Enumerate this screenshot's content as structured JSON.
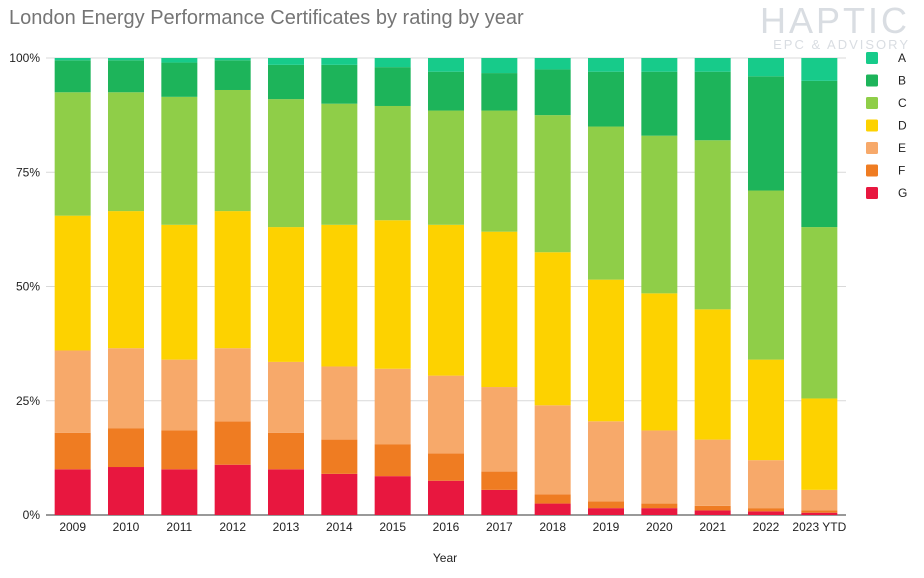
{
  "title": "London Energy Performance Certificates by rating by year",
  "logo": {
    "brand": "HAPTIC",
    "sub": "EPC & ADVISORY"
  },
  "chart_data": {
    "type": "bar",
    "stacked": true,
    "normalized": true,
    "xlabel": "Year",
    "ylabel": "",
    "ylim": [
      0,
      100
    ],
    "y_ticks": [
      "0%",
      "25%",
      "50%",
      "75%",
      "100%"
    ],
    "grid": true,
    "legend_position": "right",
    "categories": [
      "2009",
      "2010",
      "2011",
      "2012",
      "2013",
      "2014",
      "2015",
      "2016",
      "2017",
      "2018",
      "2019",
      "2020",
      "2021",
      "2022",
      "2023 YTD"
    ],
    "series": [
      {
        "name": "G",
        "color": "#e8173f",
        "values": [
          10,
          10.5,
          10,
          11,
          10,
          9,
          8.5,
          7.5,
          5.5,
          2.5,
          1.5,
          1.5,
          1,
          0.8,
          0.5
        ]
      },
      {
        "name": "F",
        "color": "#ef7c22",
        "values": [
          8,
          8.5,
          8.5,
          9.5,
          8,
          7.5,
          7,
          6,
          4,
          2,
          1.5,
          1,
          1,
          0.7,
          0.5
        ]
      },
      {
        "name": "E",
        "color": "#f7a96a",
        "values": [
          18,
          17.5,
          15.5,
          16,
          15.5,
          16,
          16.5,
          17,
          18.5,
          19.5,
          17.5,
          16,
          14.5,
          10.5,
          4.5
        ]
      },
      {
        "name": "D",
        "color": "#fdd200",
        "values": [
          29.5,
          30,
          29.5,
          30,
          29.5,
          31,
          32.5,
          33,
          34,
          33.5,
          31,
          30,
          28.5,
          22,
          20
        ]
      },
      {
        "name": "C",
        "color": "#8fce48",
        "values": [
          27,
          26,
          28,
          26.5,
          28,
          26.5,
          25,
          25,
          26.5,
          30,
          33.5,
          34.5,
          37,
          37,
          37.5
        ]
      },
      {
        "name": "B",
        "color": "#1db45a",
        "values": [
          7,
          7,
          7.5,
          6.5,
          7.5,
          8.5,
          8.5,
          8.5,
          8.2,
          10,
          12,
          14,
          15,
          25,
          32
        ]
      },
      {
        "name": "A",
        "color": "#17cb8a",
        "values": [
          0.5,
          0.5,
          1,
          0.5,
          1.5,
          1.5,
          2,
          3,
          3.3,
          2.5,
          3,
          3,
          3,
          4,
          5
        ]
      }
    ],
    "legend_order": [
      "A",
      "B",
      "C",
      "D",
      "E",
      "F",
      "G"
    ]
  }
}
